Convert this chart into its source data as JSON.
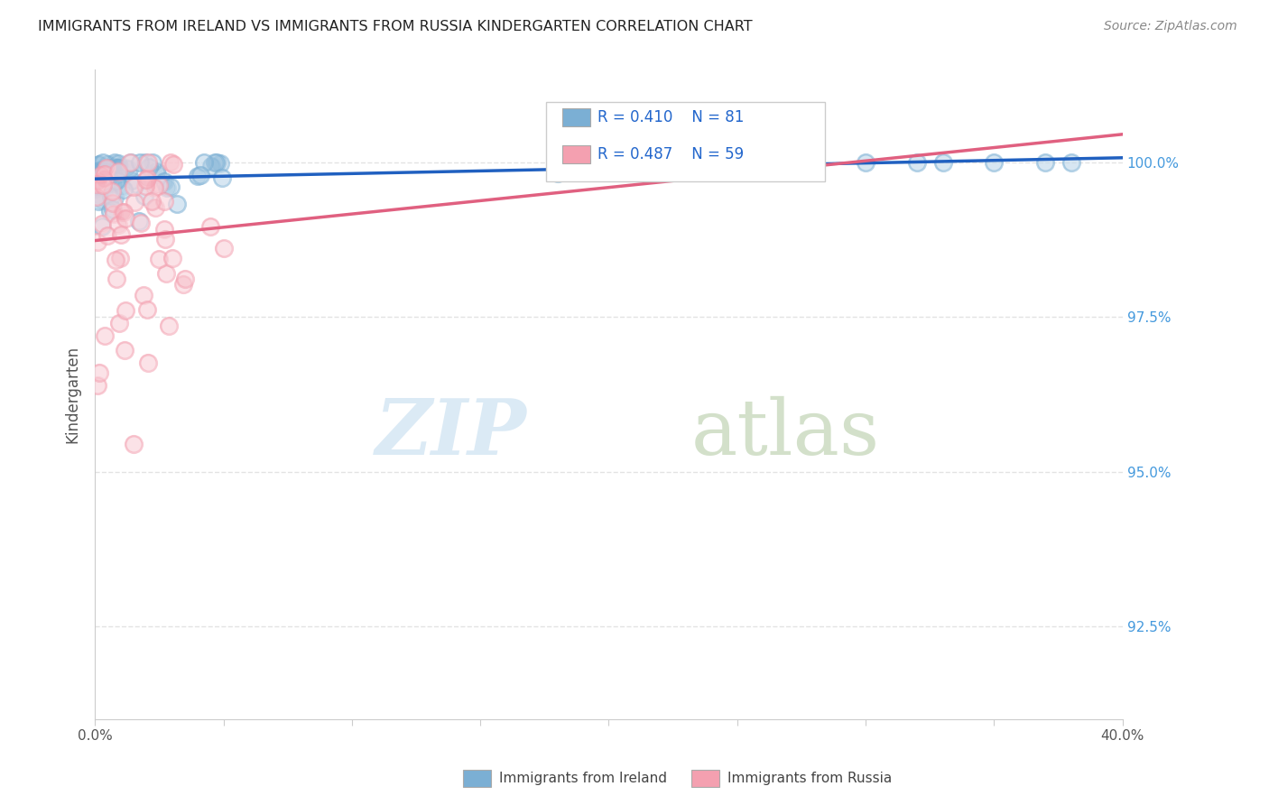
{
  "title": "IMMIGRANTS FROM IRELAND VS IMMIGRANTS FROM RUSSIA KINDERGARTEN CORRELATION CHART",
  "source": "Source: ZipAtlas.com",
  "ylabel": "Kindergarten",
  "y_ticks": [
    92.5,
    95.0,
    97.5,
    100.0
  ],
  "y_tick_labels": [
    "92.5%",
    "95.0%",
    "97.5%",
    "100.0%"
  ],
  "xlim": [
    0.0,
    40.0
  ],
  "ylim": [
    91.0,
    101.5
  ],
  "ireland_R": 0.41,
  "ireland_N": 81,
  "russia_R": 0.487,
  "russia_N": 59,
  "ireland_color": "#7bafd4",
  "russia_color": "#f4a0b0",
  "ireland_line_color": "#2060c0",
  "russia_line_color": "#e06080",
  "legend_label_ireland": "Immigrants from Ireland",
  "legend_label_russia": "Immigrants from Russia",
  "watermark_zip": "ZIP",
  "watermark_atlas": "atlas",
  "background_color": "#ffffff",
  "grid_color": "#dddddd"
}
